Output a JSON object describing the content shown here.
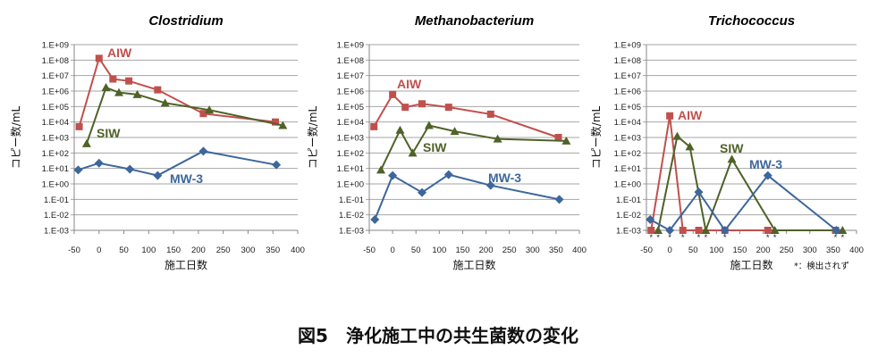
{
  "caption": "図5　浄化施工中の共生菌数の変化",
  "note": "*：検出されず",
  "colors": {
    "AIW": "#c0504d",
    "SIW": "#4f6228",
    "MW-3": "#3d679c",
    "grid": "#a6a6a6"
  },
  "chart_data": [
    {
      "type": "line",
      "title": "Clostridium",
      "xlabel": "施工日数",
      "ylabel": "コピー数/mL",
      "xlim": [
        -50,
        400
      ],
      "xticks": [
        -50,
        0,
        50,
        100,
        150,
        200,
        250,
        300,
        350,
        400
      ],
      "yscale": "log",
      "ylim": [
        0.001,
        1000000000
      ],
      "yticks": [
        "1.E-03",
        "1.E-02",
        "1.E-01",
        "1.E+00",
        "1.E+01",
        "1.E+02",
        "1.E+03",
        "1.E+04",
        "1.E+05",
        "1.E+06",
        "1.E+07",
        "1.E+08",
        "1.E+09"
      ],
      "grid": true,
      "series": [
        {
          "name": "AIW",
          "marker": "square",
          "x": [
            -40,
            0,
            28,
            60,
            118,
            210,
            355
          ],
          "y": [
            5000,
            130000000,
            6000000,
            4500000,
            1200000,
            35000,
            10000
          ]
        },
        {
          "name": "SIW",
          "marker": "triangle",
          "x": [
            -25,
            14,
            40,
            77,
            133,
            222,
            370
          ],
          "y": [
            400,
            1700000,
            800000,
            600000,
            170000,
            60000,
            6000
          ]
        },
        {
          "name": "MW-3",
          "marker": "diamond",
          "x": [
            -42,
            0,
            62,
            118,
            210,
            357
          ],
          "y": [
            8,
            22,
            9,
            3.5,
            130,
            17
          ]
        }
      ]
    },
    {
      "type": "line",
      "title": "Methanobacterium",
      "xlabel": "施工日数",
      "ylabel": "コピー数/mL",
      "xlim": [
        -50,
        400
      ],
      "xticks": [
        -50,
        0,
        50,
        100,
        150,
        200,
        250,
        300,
        350,
        400
      ],
      "yscale": "log",
      "ylim": [
        0.001,
        1000000000
      ],
      "yticks": [
        "1.E-03",
        "1.E-02",
        "1.E-01",
        "1.E+00",
        "1.E+01",
        "1.E+02",
        "1.E+03",
        "1.E+04",
        "1.E+05",
        "1.E+06",
        "1.E+07",
        "1.E+08",
        "1.E+09"
      ],
      "grid": true,
      "series": [
        {
          "name": "AIW",
          "marker": "square",
          "x": [
            -40,
            0,
            27,
            63,
            120,
            210,
            355
          ],
          "y": [
            5000,
            600000,
            90000,
            150000,
            90000,
            32000,
            1000
          ]
        },
        {
          "name": "SIW",
          "marker": "triangle",
          "x": [
            -25,
            16,
            43,
            78,
            133,
            225,
            372
          ],
          "y": [
            8,
            3000,
            100,
            6000,
            2500,
            800,
            600
          ]
        },
        {
          "name": "MW-3",
          "marker": "diamond",
          "x": [
            -38,
            0,
            63,
            120,
            210,
            357
          ],
          "y": [
            0.005,
            3.5,
            0.28,
            4,
            0.8,
            0.1
          ]
        }
      ]
    },
    {
      "type": "line",
      "title": "Trichococcus",
      "xlabel": "施工日数",
      "ylabel": "コピー数/mL",
      "xlim": [
        -50,
        400
      ],
      "xticks": [
        -50,
        0,
        50,
        100,
        150,
        200,
        250,
        300,
        350,
        400
      ],
      "yscale": "log",
      "ylim": [
        0.001,
        1000000000
      ],
      "yticks": [
        "1.E-03",
        "1.E-02",
        "1.E-01",
        "1.E+00",
        "1.E+01",
        "1.E+02",
        "1.E+03",
        "1.E+04",
        "1.E+05",
        "1.E+06",
        "1.E+07",
        "1.E+08",
        "1.E+09"
      ],
      "grid": true,
      "not_detected_marker": "*",
      "not_detected_x": [
        -40,
        -25,
        0,
        28,
        62,
        77,
        118,
        210,
        225,
        355,
        370
      ],
      "series": [
        {
          "name": "AIW",
          "marker": "square",
          "x": [
            -40,
            0,
            28,
            62,
            118,
            210,
            355
          ],
          "y": [
            0.001,
            25000,
            0.001,
            0.001,
            0.001,
            0.001,
            0.001
          ]
        },
        {
          "name": "SIW",
          "marker": "triangle",
          "x": [
            -25,
            16,
            43,
            77,
            133,
            225,
            370
          ],
          "y": [
            0.001,
            1200,
            250,
            0.001,
            40,
            0.001,
            0.001
          ]
        },
        {
          "name": "MW-3",
          "marker": "diamond",
          "x": [
            -42,
            0,
            62,
            118,
            210,
            357
          ],
          "y": [
            0.005,
            0.001,
            0.3,
            0.001,
            3.5,
            0.001
          ]
        }
      ]
    }
  ]
}
